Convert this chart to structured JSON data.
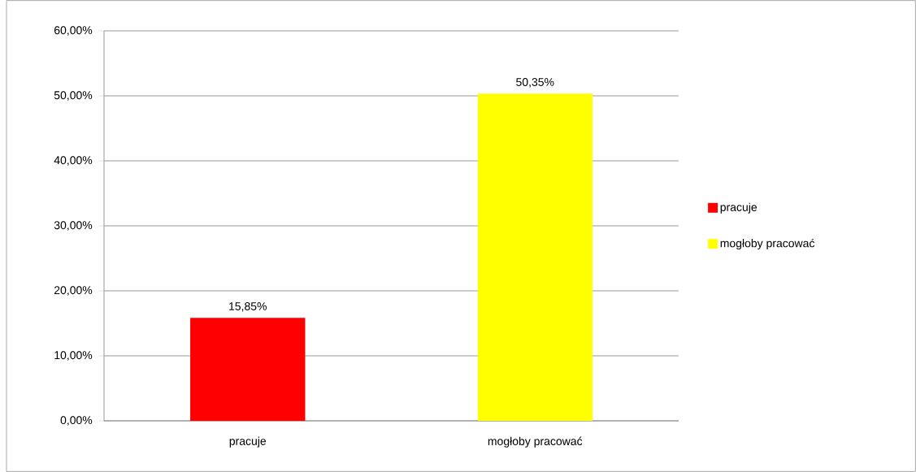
{
  "chart_data": {
    "type": "bar",
    "categories": [
      "pracuje",
      "mogłoby pracować"
    ],
    "series": [
      {
        "name": "pracuje",
        "color": "#ff0000",
        "values": [
          15.85,
          null
        ],
        "value_labels": [
          "15,85%",
          null
        ]
      },
      {
        "name": "mogłoby pracować",
        "color": "#ffff00",
        "values": [
          null,
          50.35
        ],
        "value_labels": [
          null,
          "50,35%"
        ]
      }
    ],
    "ylim": [
      0,
      60
    ],
    "yticks": [
      {
        "value": 0,
        "label": "0,00%"
      },
      {
        "value": 10,
        "label": "10,00%"
      },
      {
        "value": 20,
        "label": "20,00%"
      },
      {
        "value": 30,
        "label": "30,00%"
      },
      {
        "value": 40,
        "label": "40,00%"
      },
      {
        "value": 50,
        "label": "50,00%"
      },
      {
        "value": 60,
        "label": "60,00%"
      }
    ],
    "grid": "y",
    "legend": "right"
  }
}
